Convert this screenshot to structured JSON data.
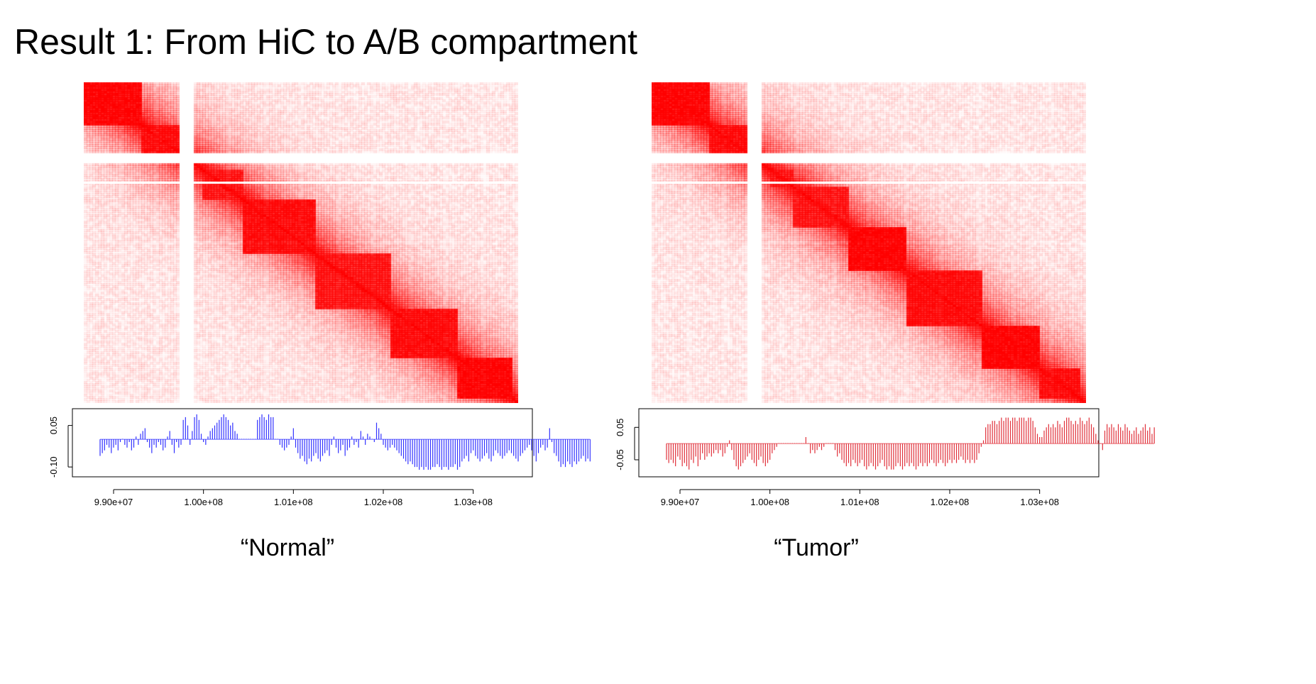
{
  "page": {
    "title": "Result 1: From HiC to A/B compartment"
  },
  "colors": {
    "heat": "#ff0000",
    "normal_track": "#3333ff",
    "tumor_track": "#e0303a",
    "axis": "#000000"
  },
  "chart_data": [
    {
      "type": "heatmap",
      "caption": "“Normal”",
      "title": "",
      "xlabel": "",
      "ylabel": "",
      "heatmap": {
        "description_type": "Hi-C contact matrix",
        "blocks": [
          {
            "from": 98850000,
            "to": 99450000,
            "intensity": 0.95
          },
          {
            "from": 99400000,
            "to": 99850000,
            "intensity": 0.9
          },
          {
            "from": 100100000,
            "to": 100550000,
            "intensity": 0.85
          },
          {
            "from": 100500000,
            "to": 101300000,
            "intensity": 0.9
          },
          {
            "from": 101250000,
            "to": 102100000,
            "intensity": 0.85
          },
          {
            "from": 102100000,
            "to": 102800000,
            "intensity": 0.9
          },
          {
            "from": 102800000,
            "to": 103400000,
            "intensity": 0.95
          }
        ],
        "gaps": [
          [
            99850000,
            100000000
          ]
        ]
      },
      "track": {
        "series_color": "normal_track",
        "ylim": [
          -0.115,
          0.09
        ],
        "yticks": [
          "-0.10",
          "0.05"
        ],
        "ytick_values": [
          -0.1,
          0.05
        ],
        "xticks": [
          "9.90e+07",
          "1.00e+08",
          "1.01e+08",
          "1.02e+08",
          "1.03e+08"
        ],
        "xtick_values": [
          99000000,
          100000000,
          101000000,
          102000000,
          103000000
        ],
        "xlim": [
          98700000,
          103500000
        ],
        "x_start": 98850000,
        "x_step": 25000,
        "values": [
          -0.06,
          -0.05,
          -0.04,
          -0.02,
          -0.03,
          -0.05,
          -0.03,
          -0.02,
          -0.04,
          -0.01,
          0.0,
          -0.02,
          -0.03,
          -0.01,
          -0.04,
          -0.03,
          0.01,
          -0.02,
          0.02,
          0.03,
          0.04,
          -0.01,
          -0.03,
          -0.05,
          -0.02,
          -0.03,
          -0.01,
          -0.02,
          -0.04,
          -0.03,
          0.01,
          0.03,
          -0.02,
          -0.05,
          -0.01,
          -0.03,
          -0.02,
          0.07,
          0.08,
          0.05,
          -0.02,
          0.03,
          0.08,
          0.09,
          0.07,
          0.02,
          -0.01,
          -0.02,
          0.01,
          0.03,
          0.04,
          0.05,
          0.06,
          0.07,
          0.08,
          0.09,
          0.08,
          0.07,
          0.05,
          0.06,
          0.03,
          0.02,
          0.0,
          0.0,
          0.0,
          0.0,
          0.0,
          0.0,
          0.0,
          0.0,
          0.07,
          0.08,
          0.09,
          0.08,
          0.07,
          0.09,
          0.08,
          0.08,
          0.0,
          0.0,
          -0.02,
          -0.03,
          -0.04,
          -0.03,
          -0.02,
          0.01,
          0.04,
          -0.03,
          -0.05,
          -0.07,
          -0.06,
          -0.08,
          -0.09,
          -0.07,
          -0.08,
          -0.06,
          -0.05,
          -0.07,
          -0.08,
          -0.06,
          -0.05,
          -0.04,
          -0.06,
          -0.02,
          0.01,
          -0.03,
          -0.05,
          -0.04,
          -0.02,
          -0.06,
          -0.04,
          -0.03,
          0.01,
          -0.02,
          -0.01,
          -0.03,
          0.03,
          0.01,
          -0.02,
          0.02,
          0.01,
          0.0,
          -0.01,
          0.06,
          0.04,
          0.02,
          -0.02,
          -0.03,
          -0.04,
          -0.03,
          -0.02,
          -0.03,
          -0.04,
          -0.05,
          -0.06,
          -0.07,
          -0.08,
          -0.09,
          -0.08,
          -0.09,
          -0.1,
          -0.1,
          -0.11,
          -0.1,
          -0.11,
          -0.1,
          -0.11,
          -0.11,
          -0.1,
          -0.1,
          -0.09,
          -0.1,
          -0.11,
          -0.1,
          -0.1,
          -0.11,
          -0.1,
          -0.1,
          -0.09,
          -0.11,
          -0.1,
          -0.08,
          -0.07,
          -0.06,
          -0.08,
          -0.05,
          -0.04,
          -0.06,
          -0.07,
          -0.08,
          -0.07,
          -0.06,
          -0.05,
          -0.07,
          -0.08,
          -0.06,
          -0.04,
          -0.05,
          -0.06,
          -0.07,
          -0.06,
          -0.05,
          -0.04,
          -0.05,
          -0.06,
          -0.07,
          -0.08,
          -0.06,
          -0.05,
          -0.04,
          -0.03,
          -0.02,
          -0.04,
          -0.06,
          -0.08,
          -0.05,
          -0.03,
          -0.02,
          -0.04,
          -0.03,
          0.04,
          -0.01,
          -0.05,
          -0.06,
          -0.08,
          -0.1,
          -0.09,
          -0.1,
          -0.08,
          -0.09,
          -0.1,
          -0.08,
          -0.09,
          -0.08,
          -0.07,
          -0.06,
          -0.08,
          -0.07,
          -0.08
        ]
      }
    },
    {
      "type": "heatmap",
      "caption": "“Tumor”",
      "title": "",
      "xlabel": "",
      "ylabel": "",
      "heatmap": {
        "description_type": "Hi-C contact matrix",
        "blocks": [
          {
            "from": 98850000,
            "to": 99450000,
            "intensity": 0.95
          },
          {
            "from": 99400000,
            "to": 99850000,
            "intensity": 0.9
          },
          {
            "from": 100100000,
            "to": 100350000,
            "intensity": 0.85
          },
          {
            "from": 100350000,
            "to": 100950000,
            "intensity": 0.85
          },
          {
            "from": 100900000,
            "to": 101550000,
            "intensity": 0.95
          },
          {
            "from": 101550000,
            "to": 102350000,
            "intensity": 0.9
          },
          {
            "from": 102350000,
            "to": 102950000,
            "intensity": 0.95
          },
          {
            "from": 102950000,
            "to": 103400000,
            "intensity": 0.9
          }
        ],
        "gaps": [
          [
            99850000,
            100000000
          ]
        ]
      },
      "track": {
        "series_color": "tumor_track",
        "ylim": [
          -0.085,
          0.09
        ],
        "yticks": [
          "-0.05",
          "0.05"
        ],
        "ytick_values": [
          -0.05,
          0.05
        ],
        "xticks": [
          "9.90e+07",
          "1.00e+08",
          "1.01e+08",
          "1.02e+08",
          "1.03e+08"
        ],
        "xtick_values": [
          99000000,
          100000000,
          101000000,
          102000000,
          103000000
        ],
        "xlim": [
          98700000,
          103500000
        ],
        "x_start": 98850000,
        "x_step": 25000,
        "values": [
          -0.05,
          -0.06,
          -0.05,
          -0.06,
          -0.07,
          -0.04,
          -0.05,
          -0.07,
          -0.06,
          -0.07,
          -0.08,
          -0.05,
          -0.06,
          -0.04,
          -0.07,
          -0.05,
          -0.03,
          -0.05,
          -0.04,
          -0.03,
          -0.04,
          -0.03,
          -0.02,
          -0.03,
          -0.02,
          -0.04,
          -0.03,
          -0.01,
          0.01,
          -0.02,
          -0.05,
          -0.07,
          -0.08,
          -0.07,
          -0.06,
          -0.05,
          -0.04,
          -0.03,
          -0.05,
          -0.06,
          -0.07,
          -0.05,
          -0.04,
          -0.06,
          -0.07,
          -0.06,
          -0.05,
          -0.03,
          -0.02,
          -0.01,
          0.0,
          0.0,
          0.0,
          0.0,
          0.0,
          0.0,
          0.0,
          0.0,
          0.0,
          0.0,
          0.0,
          0.0,
          0.02,
          0.0,
          -0.03,
          -0.02,
          -0.03,
          -0.02,
          -0.01,
          -0.02,
          -0.01,
          0.0,
          0.0,
          0.0,
          0.0,
          -0.02,
          -0.04,
          -0.03,
          -0.05,
          -0.06,
          -0.07,
          -0.06,
          -0.07,
          -0.05,
          -0.06,
          -0.07,
          -0.06,
          -0.05,
          -0.07,
          -0.08,
          -0.07,
          -0.06,
          -0.07,
          -0.08,
          -0.07,
          -0.06,
          -0.05,
          -0.07,
          -0.08,
          -0.07,
          -0.08,
          -0.08,
          -0.07,
          -0.06,
          -0.07,
          -0.08,
          -0.07,
          -0.06,
          -0.07,
          -0.06,
          -0.07,
          -0.08,
          -0.07,
          -0.06,
          -0.07,
          -0.06,
          -0.07,
          -0.06,
          -0.05,
          -0.06,
          -0.07,
          -0.06,
          -0.05,
          -0.06,
          -0.07,
          -0.06,
          -0.05,
          -0.06,
          -0.05,
          -0.06,
          -0.05,
          -0.04,
          -0.05,
          -0.06,
          -0.05,
          -0.06,
          -0.05,
          -0.06,
          -0.05,
          -0.03,
          -0.01,
          0.01,
          0.05,
          0.06,
          0.06,
          0.07,
          0.07,
          0.06,
          0.07,
          0.08,
          0.07,
          0.08,
          0.08,
          0.07,
          0.08,
          0.08,
          0.07,
          0.08,
          0.08,
          0.08,
          0.07,
          0.08,
          0.08,
          0.07,
          0.05,
          0.03,
          0.02,
          0.02,
          0.04,
          0.05,
          0.06,
          0.05,
          0.06,
          0.05,
          0.07,
          0.06,
          0.05,
          0.07,
          0.08,
          0.08,
          0.07,
          0.06,
          0.07,
          0.06,
          0.08,
          0.07,
          0.06,
          0.07,
          0.08,
          0.06,
          0.05,
          0.03,
          0.01,
          0.0,
          -0.02,
          0.04,
          0.06,
          0.05,
          0.06,
          0.05,
          0.04,
          0.06,
          0.05,
          0.04,
          0.06,
          0.05,
          0.04,
          0.03,
          0.04,
          0.05,
          0.03,
          0.04,
          0.05,
          0.06,
          0.04,
          0.05,
          0.03,
          0.05
        ]
      }
    }
  ]
}
